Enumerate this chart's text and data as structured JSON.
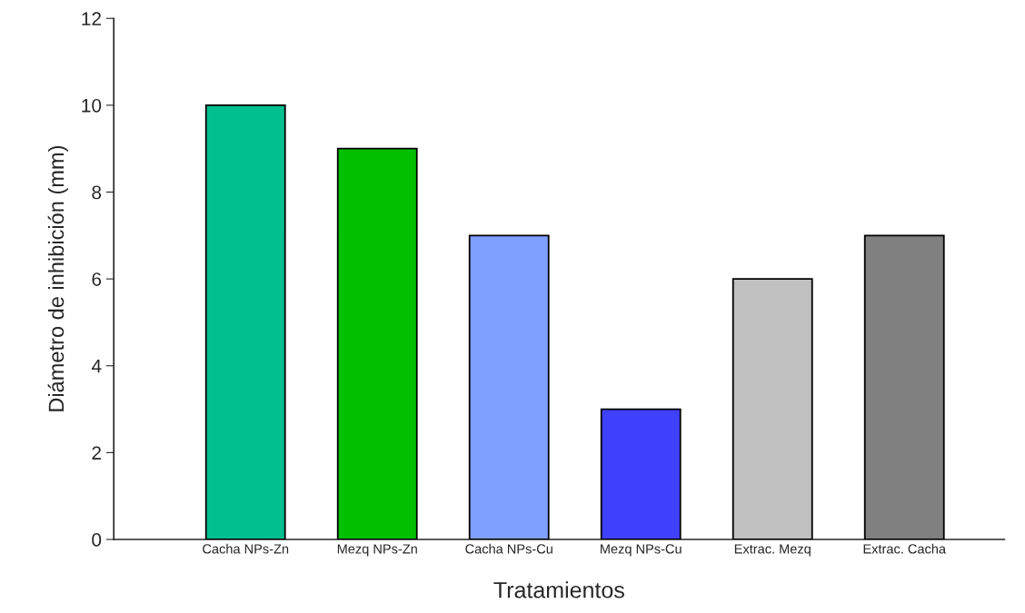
{
  "chart_data": {
    "type": "bar",
    "xlabel": "Tratamientos",
    "ylabel": "Diámetro de inhibición (mm)",
    "categories": [
      "Cacha NPs-Zn",
      "Mezq NPs-Zn",
      "Cacha NPs-Cu",
      "Mezq NPs-Cu",
      "Extrac. Mezq",
      "Extrac. Cacha"
    ],
    "values": [
      10,
      9,
      7,
      3,
      6,
      7
    ],
    "colors": [
      "#00c090",
      "#00c000",
      "#80a0ff",
      "#4040ff",
      "#c0c0c0",
      "#808080"
    ],
    "ylim": [
      0,
      12
    ],
    "yticks": [
      0,
      2,
      4,
      6,
      8,
      10,
      12
    ],
    "grid": false,
    "legend": false
  }
}
